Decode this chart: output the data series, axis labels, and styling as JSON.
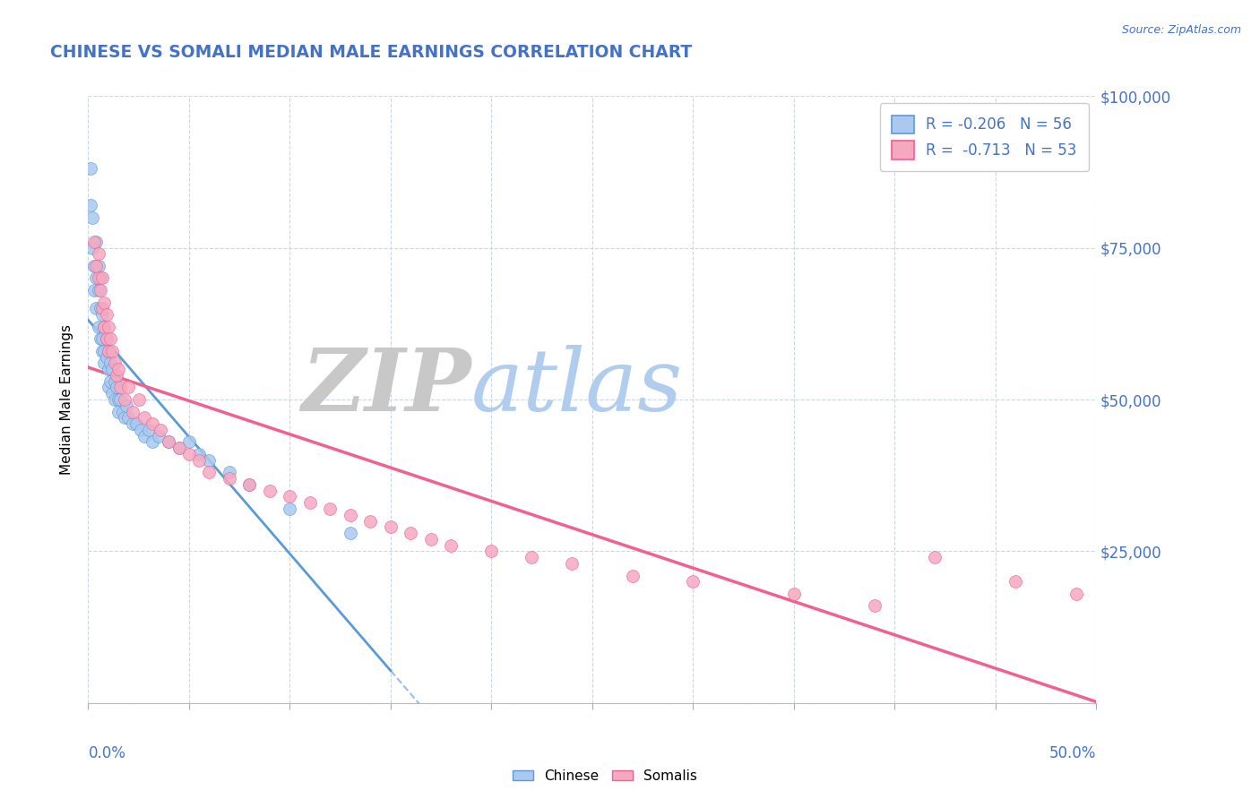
{
  "title": "CHINESE VS SOMALI MEDIAN MALE EARNINGS CORRELATION CHART",
  "source_text": "Source: ZipAtlas.com",
  "ylabel": "Median Male Earnings",
  "xmin": 0.0,
  "xmax": 0.5,
  "ymin": 0,
  "ymax": 100000,
  "yticks": [
    0,
    25000,
    50000,
    75000,
    100000
  ],
  "ytick_labels": [
    "",
    "$25,000",
    "$50,000",
    "$75,000",
    "$100,000"
  ],
  "chinese_R": -0.206,
  "chinese_N": 56,
  "somali_R": -0.713,
  "somali_N": 53,
  "chinese_color": "#aac8f0",
  "somali_color": "#f5a8c0",
  "chinese_line_color": "#5b9bd5",
  "somali_line_color": "#f06090",
  "dashed_line_color": "#9bbde0",
  "background_color": "#ffffff",
  "grid_color": "#c8d8e8",
  "title_color": "#4472c4",
  "source_color": "#4472c4",
  "watermark_zip_color": "#c8c8c8",
  "watermark_atlas_color": "#b0ccee",
  "chinese_x": [
    0.001,
    0.001,
    0.002,
    0.002,
    0.003,
    0.003,
    0.004,
    0.004,
    0.004,
    0.005,
    0.005,
    0.005,
    0.006,
    0.006,
    0.006,
    0.007,
    0.007,
    0.007,
    0.008,
    0.008,
    0.008,
    0.009,
    0.009,
    0.01,
    0.01,
    0.01,
    0.011,
    0.011,
    0.012,
    0.012,
    0.013,
    0.013,
    0.014,
    0.015,
    0.015,
    0.016,
    0.017,
    0.018,
    0.019,
    0.02,
    0.022,
    0.024,
    0.026,
    0.028,
    0.03,
    0.032,
    0.035,
    0.04,
    0.045,
    0.05,
    0.055,
    0.06,
    0.07,
    0.08,
    0.1,
    0.13
  ],
  "chinese_y": [
    82000,
    88000,
    80000,
    75000,
    72000,
    68000,
    76000,
    70000,
    65000,
    72000,
    68000,
    62000,
    70000,
    65000,
    60000,
    64000,
    60000,
    58000,
    62000,
    58000,
    56000,
    60000,
    57000,
    58000,
    55000,
    52000,
    56000,
    53000,
    55000,
    51000,
    53000,
    50000,
    52000,
    50000,
    48000,
    50000,
    48000,
    47000,
    49000,
    47000,
    46000,
    46000,
    45000,
    44000,
    45000,
    43000,
    44000,
    43000,
    42000,
    43000,
    41000,
    40000,
    38000,
    36000,
    32000,
    28000
  ],
  "somali_x": [
    0.003,
    0.004,
    0.005,
    0.005,
    0.006,
    0.007,
    0.007,
    0.008,
    0.008,
    0.009,
    0.009,
    0.01,
    0.01,
    0.011,
    0.012,
    0.013,
    0.014,
    0.015,
    0.016,
    0.018,
    0.02,
    0.022,
    0.025,
    0.028,
    0.032,
    0.036,
    0.04,
    0.045,
    0.05,
    0.055,
    0.06,
    0.07,
    0.08,
    0.09,
    0.1,
    0.11,
    0.12,
    0.13,
    0.14,
    0.15,
    0.16,
    0.17,
    0.18,
    0.2,
    0.22,
    0.24,
    0.27,
    0.3,
    0.35,
    0.39,
    0.42,
    0.46,
    0.49
  ],
  "somali_y": [
    76000,
    72000,
    70000,
    74000,
    68000,
    70000,
    65000,
    66000,
    62000,
    64000,
    60000,
    62000,
    58000,
    60000,
    58000,
    56000,
    54000,
    55000,
    52000,
    50000,
    52000,
    48000,
    50000,
    47000,
    46000,
    45000,
    43000,
    42000,
    41000,
    40000,
    38000,
    37000,
    36000,
    35000,
    34000,
    33000,
    32000,
    31000,
    30000,
    29000,
    28000,
    27000,
    26000,
    25000,
    24000,
    23000,
    21000,
    20000,
    18000,
    16000,
    24000,
    20000,
    18000
  ],
  "xtick_positions": [
    0.0,
    0.05,
    0.1,
    0.15,
    0.2,
    0.25,
    0.3,
    0.35,
    0.4,
    0.45,
    0.5
  ],
  "chinese_line_xmax": 0.15,
  "somali_line_xmax": 0.5,
  "dashed_line_xstart": 0.0,
  "dashed_line_xend": 0.5,
  "dashed_line_ystart": 58000,
  "dashed_line_yend": 3000
}
